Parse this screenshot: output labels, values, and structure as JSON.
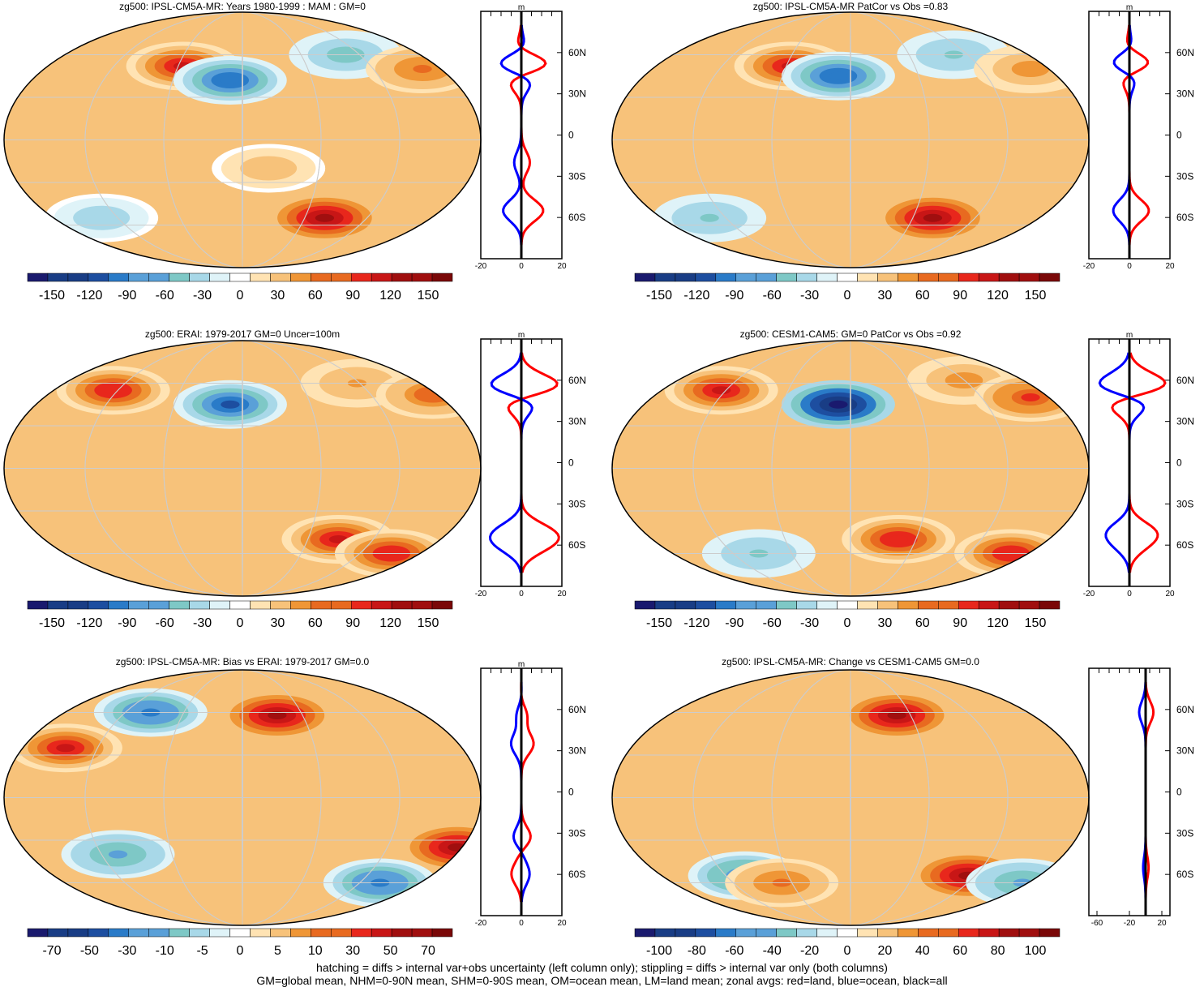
{
  "field": "zg500",
  "palette": [
    "#1a1a6e",
    "#1d4ea0",
    "#2a7bc8",
    "#5aa0d8",
    "#7ec8c6",
    "#a8d8e8",
    "#dff3f8",
    "#ffffff",
    "#ffe3b3",
    "#f7c27a",
    "#ef9636",
    "#e86a20",
    "#e8271c",
    "#c81616",
    "#8c0a0a",
    "#b01010",
    "#e01818"
  ],
  "panels": [
    {
      "title": "zg500: IPSL-CM5A-MR: Years 1980-1999 : MAM : GM=0",
      "colorbar": [
        "-150",
        "-120",
        "-90",
        "-60",
        "-30",
        "0",
        "30",
        "60",
        "90",
        "120",
        "150"
      ]
    },
    {
      "title": "zg500: IPSL-CM5A-MR PatCor vs Obs =0.83",
      "colorbar": [
        "-150",
        "-120",
        "-90",
        "-60",
        "-30",
        "0",
        "30",
        "60",
        "90",
        "120",
        "150"
      ]
    },
    {
      "title": "zg500: ERAI: 1979-2017 GM=0 Uncer=100m",
      "colorbar": [
        "-150",
        "-120",
        "-90",
        "-60",
        "-30",
        "0",
        "30",
        "60",
        "90",
        "120",
        "150"
      ]
    },
    {
      "title": "zg500: CESM1-CAM5: GM=0 PatCor vs Obs =0.92",
      "colorbar": [
        "-150",
        "-120",
        "-90",
        "-60",
        "-30",
        "0",
        "30",
        "60",
        "90",
        "120",
        "150"
      ]
    },
    {
      "title": "zg500: IPSL-CM5A-MR: Bias vs ERAI: 1979-2017 GM=0.0",
      "colorbar": [
        "-70",
        "-50",
        "-30",
        "-10",
        "-5",
        "0",
        "5",
        "10",
        "30",
        "50",
        "70"
      ]
    },
    {
      "title": "zg500: IPSL-CM5A-MR: Change vs CESM1-CAM5 GM=0.0",
      "colorbar": [
        "-100",
        "-80",
        "-60",
        "-40",
        "-20",
        "0",
        "20",
        "40",
        "60",
        "80",
        "100"
      ]
    }
  ],
  "zonal_panels": [
    {
      "unit": "m",
      "xticks": [
        "-20",
        "0",
        "20"
      ],
      "xlim": [
        -20,
        20
      ]
    },
    {
      "unit": "m",
      "xticks": [
        "-20",
        "0",
        "20"
      ],
      "xlim": [
        -20,
        20
      ]
    },
    {
      "unit": "m",
      "xticks": [
        "-20",
        "0",
        "20"
      ],
      "xlim": [
        -20,
        20
      ]
    },
    {
      "unit": "m",
      "xticks": [
        "-20",
        "0",
        "20"
      ],
      "xlim": [
        -20,
        20
      ]
    },
    {
      "unit": "m",
      "xticks": [
        "-20",
        "0",
        "20"
      ],
      "xlim": [
        -20,
        20
      ]
    },
    {
      "unit": "",
      "xticks": [
        "-60",
        "-20",
        "20"
      ],
      "xlim": [
        -70,
        30
      ]
    }
  ],
  "lat_labels": [
    "60N",
    "30N",
    "0",
    "30S",
    "60S"
  ],
  "footer": {
    "line1": "hatching = diffs > internal var+obs uncertainty (left column only); stippling = diffs > internal var only (both columns)",
    "line2": "GM=global mean, NHM=0-90N mean, SHM=0-90S mean, OM=ocean mean, LM=land mean; zonal avgs: red=land, blue=ocean, black=all"
  },
  "chart_data": [
    {
      "type": "heatmap",
      "title": "zg500: IPSL-CM5A-MR: Years 1980-1999 : MAM : GM=0",
      "colorbar_ticks": [
        -150,
        -120,
        -90,
        -60,
        -30,
        0,
        30,
        60,
        90,
        120,
        150
      ],
      "zonal_xlim": [
        -20,
        20
      ],
      "zonal_series": [
        "land",
        "ocean",
        "all"
      ],
      "anomalies": [
        {
          "lon": -50,
          "lat": 52,
          "amp": 110
        },
        {
          "lon": -10,
          "lat": 42,
          "amp": -90
        },
        {
          "lon": 90,
          "lat": 60,
          "amp": -50
        },
        {
          "lon": 150,
          "lat": 50,
          "amp": 60
        },
        {
          "lon": 70,
          "lat": -55,
          "amp": 120
        },
        {
          "lon": -120,
          "lat": -55,
          "amp": -30
        },
        {
          "lon": 20,
          "lat": -20,
          "amp": 35
        }
      ]
    },
    {
      "type": "heatmap",
      "title": "zg500: IPSL-CM5A-MR PatCor vs Obs =0.83",
      "colorbar_ticks": [
        -150,
        -120,
        -90,
        -60,
        -30,
        0,
        30,
        60,
        90,
        120,
        150
      ],
      "zonal_xlim": [
        -20,
        20
      ],
      "zonal_series": [
        "land",
        "ocean",
        "all"
      ],
      "anomalies": [
        {
          "lon": -50,
          "lat": 52,
          "amp": 110
        },
        {
          "lon": -10,
          "lat": 45,
          "amp": -90
        },
        {
          "lon": 90,
          "lat": 60,
          "amp": -40
        },
        {
          "lon": 150,
          "lat": 50,
          "amp": 50
        },
        {
          "lon": 70,
          "lat": -55,
          "amp": 120
        },
        {
          "lon": -120,
          "lat": -55,
          "amp": -40
        }
      ]
    },
    {
      "type": "heatmap",
      "title": "zg500: ERAI: 1979-2017 GM=0 Uncer=100m",
      "colorbar_ticks": [
        -150,
        -120,
        -90,
        -60,
        -30,
        0,
        30,
        60,
        90,
        120,
        150
      ],
      "zonal_xlim": [
        -20,
        20
      ],
      "zonal_series": [
        "land",
        "ocean",
        "all"
      ],
      "anomalies": [
        {
          "lon": -110,
          "lat": 55,
          "amp": 90
        },
        {
          "lon": -10,
          "lat": 45,
          "amp": -110
        },
        {
          "lon": 100,
          "lat": 60,
          "amp": 40
        },
        {
          "lon": 160,
          "lat": 52,
          "amp": 70
        },
        {
          "lon": 80,
          "lat": -50,
          "amp": 100
        },
        {
          "lon": 130,
          "lat": -60,
          "amp": 90
        }
      ]
    },
    {
      "type": "heatmap",
      "title": "zg500: CESM1-CAM5: GM=0 PatCor vs Obs =0.92",
      "colorbar_ticks": [
        -150,
        -120,
        -90,
        -60,
        -30,
        0,
        30,
        60,
        90,
        120,
        150
      ],
      "zonal_xlim": [
        -20,
        20
      ],
      "zonal_series": [
        "land",
        "ocean",
        "all"
      ],
      "anomalies": [
        {
          "lon": -110,
          "lat": 55,
          "amp": 100
        },
        {
          "lon": -10,
          "lat": 45,
          "amp": -150
        },
        {
          "lon": 100,
          "lat": 62,
          "amp": 50
        },
        {
          "lon": 150,
          "lat": 50,
          "amp": 80
        },
        {
          "lon": 40,
          "lat": -50,
          "amp": 90
        },
        {
          "lon": 140,
          "lat": -60,
          "amp": 90
        },
        {
          "lon": -80,
          "lat": -60,
          "amp": -40
        }
      ]
    },
    {
      "type": "heatmap",
      "title": "zg500: IPSL-CM5A-MR: Bias vs ERAI: 1979-2017 GM=0.0",
      "colorbar_ticks": [
        -70,
        -50,
        -30,
        -10,
        -5,
        0,
        5,
        10,
        30,
        50,
        70
      ],
      "zonal_xlim": [
        -20,
        20
      ],
      "zonal_series": [
        "land",
        "ocean",
        "all"
      ],
      "anomalies": [
        {
          "lon": 30,
          "lat": 58,
          "amp": 60
        },
        {
          "lon": -140,
          "lat": 35,
          "amp": 50
        },
        {
          "lon": -80,
          "lat": 60,
          "amp": -40
        },
        {
          "lon": 170,
          "lat": -35,
          "amp": 60
        },
        {
          "lon": -100,
          "lat": -40,
          "amp": -30
        },
        {
          "lon": 120,
          "lat": -60,
          "amp": -40
        }
      ]
    },
    {
      "type": "heatmap",
      "title": "zg500: IPSL-CM5A-MR: Change vs CESM1-CAM5 GM=0.0",
      "colorbar_ticks": [
        -100,
        -80,
        -60,
        -40,
        -20,
        0,
        20,
        40,
        60,
        80,
        100
      ],
      "zonal_xlim": [
        -70,
        30
      ],
      "zonal_series": [
        "land",
        "ocean",
        "all"
      ],
      "anomalies": [
        {
          "lon": 40,
          "lat": 58,
          "amp": 80
        },
        {
          "lon": 100,
          "lat": -55,
          "amp": 80
        },
        {
          "lon": -90,
          "lat": -55,
          "amp": -50
        },
        {
          "lon": 150,
          "lat": -60,
          "amp": -40
        },
        {
          "lon": -60,
          "lat": -60,
          "amp": 40
        }
      ]
    }
  ]
}
